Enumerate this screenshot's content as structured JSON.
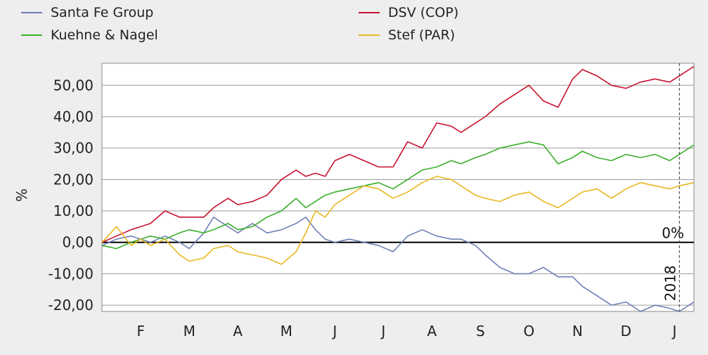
{
  "chart_data": {
    "type": "line",
    "title": "",
    "xlabel": "",
    "ylabel": "%",
    "ylim": [
      -22,
      57
    ],
    "y_ticks": [
      "50,00",
      "40,00",
      "30,00",
      "20,00",
      "10,00",
      "0,00",
      "-10,00",
      "-20,00"
    ],
    "y_tick_values": [
      50,
      40,
      30,
      20,
      10,
      0,
      -10,
      -20
    ],
    "x_tick_labels": [
      "F",
      "M",
      "A",
      "M",
      "J",
      "J",
      "A",
      "S",
      "O",
      "N",
      "D",
      "J"
    ],
    "x_tick_positions": [
      1,
      2,
      3,
      4,
      5,
      6,
      7,
      8,
      9,
      10,
      11,
      12
    ],
    "xlim": [
      0.2,
      12.4
    ],
    "grid": true,
    "legend_position": "top",
    "zero_line_label": "0%",
    "year_marker": {
      "label": "2018",
      "x": 12.1
    },
    "series": [
      {
        "name": "Santa Fe Group",
        "color": "#7080b8",
        "x": [
          0.2,
          0.5,
          0.8,
          1.0,
          1.2,
          1.5,
          1.8,
          2.0,
          2.3,
          2.5,
          2.8,
          3.0,
          3.3,
          3.6,
          3.9,
          4.2,
          4.4,
          4.6,
          4.8,
          5.0,
          5.3,
          5.6,
          5.9,
          6.2,
          6.5,
          6.8,
          7.1,
          7.4,
          7.6,
          7.9,
          8.1,
          8.4,
          8.7,
          9.0,
          9.3,
          9.6,
          9.9,
          10.1,
          10.4,
          10.7,
          11.0,
          11.3,
          11.6,
          11.9,
          12.1,
          12.4
        ],
        "y": [
          -1,
          1,
          2,
          1,
          0,
          2,
          0,
          -2,
          3,
          8,
          5,
          3,
          6,
          3,
          4,
          6,
          8,
          4,
          1,
          0,
          1,
          0,
          -1,
          -3,
          2,
          4,
          2,
          1,
          1,
          -1,
          -4,
          -8,
          -10,
          -10,
          -8,
          -11,
          -11,
          -14,
          -17,
          -20,
          -19,
          -22,
          -20,
          -21,
          -22,
          -19
        ]
      },
      {
        "name": "DSV (COP)",
        "color": "#c8102e",
        "x": [
          0.2,
          0.5,
          0.8,
          1.0,
          1.2,
          1.5,
          1.8,
          2.0,
          2.3,
          2.5,
          2.8,
          3.0,
          3.3,
          3.6,
          3.9,
          4.2,
          4.4,
          4.6,
          4.8,
          5.0,
          5.3,
          5.6,
          5.9,
          6.2,
          6.5,
          6.8,
          7.1,
          7.4,
          7.6,
          7.9,
          8.1,
          8.4,
          8.7,
          9.0,
          9.3,
          9.6,
          9.9,
          10.1,
          10.4,
          10.7,
          11.0,
          11.3,
          11.6,
          11.9,
          12.1,
          12.4
        ],
        "y": [
          0,
          2,
          4,
          5,
          6,
          10,
          8,
          8,
          8,
          11,
          14,
          12,
          13,
          15,
          20,
          23,
          21,
          22,
          21,
          26,
          28,
          26,
          24,
          24,
          32,
          30,
          38,
          37,
          35,
          38,
          40,
          44,
          47,
          50,
          45,
          43,
          52,
          55,
          53,
          50,
          49,
          51,
          52,
          51,
          53,
          56
        ]
      },
      {
        "name": "Kuehne & Nagel",
        "color": "#3aaf2a",
        "x": [
          0.2,
          0.5,
          0.8,
          1.0,
          1.2,
          1.5,
          1.8,
          2.0,
          2.3,
          2.5,
          2.8,
          3.0,
          3.3,
          3.6,
          3.9,
          4.2,
          4.4,
          4.6,
          4.8,
          5.0,
          5.3,
          5.6,
          5.9,
          6.2,
          6.5,
          6.8,
          7.1,
          7.4,
          7.6,
          7.9,
          8.1,
          8.4,
          8.7,
          9.0,
          9.3,
          9.6,
          9.9,
          10.1,
          10.4,
          10.7,
          11.0,
          11.3,
          11.6,
          11.9,
          12.1,
          12.4
        ],
        "y": [
          -1,
          -2,
          0,
          1,
          2,
          1,
          3,
          4,
          3,
          4,
          6,
          4,
          5,
          8,
          10,
          14,
          11,
          13,
          15,
          16,
          17,
          18,
          19,
          17,
          20,
          23,
          24,
          26,
          25,
          27,
          28,
          30,
          31,
          32,
          31,
          25,
          27,
          29,
          27,
          26,
          28,
          27,
          28,
          26,
          28,
          31
        ]
      },
      {
        "name": "Stef (PAR)",
        "color": "#e8b820",
        "x": [
          0.2,
          0.5,
          0.8,
          1.0,
          1.2,
          1.5,
          1.8,
          2.0,
          2.3,
          2.5,
          2.8,
          3.0,
          3.3,
          3.6,
          3.9,
          4.2,
          4.4,
          4.6,
          4.8,
          5.0,
          5.3,
          5.6,
          5.9,
          6.2,
          6.5,
          6.8,
          7.1,
          7.4,
          7.6,
          7.9,
          8.1,
          8.4,
          8.7,
          9.0,
          9.3,
          9.6,
          9.9,
          10.1,
          10.4,
          10.7,
          11.0,
          11.3,
          11.6,
          11.9,
          12.1,
          12.4
        ],
        "y": [
          0,
          5,
          -1,
          1,
          -1,
          1,
          -4,
          -6,
          -5,
          -2,
          -1,
          -3,
          -4,
          -5,
          -7,
          -3,
          3,
          10,
          8,
          12,
          15,
          18,
          17,
          14,
          16,
          19,
          21,
          20,
          18,
          15,
          14,
          13,
          15,
          16,
          13,
          11,
          14,
          16,
          17,
          14,
          17,
          19,
          18,
          17,
          18,
          19
        ]
      }
    ]
  }
}
